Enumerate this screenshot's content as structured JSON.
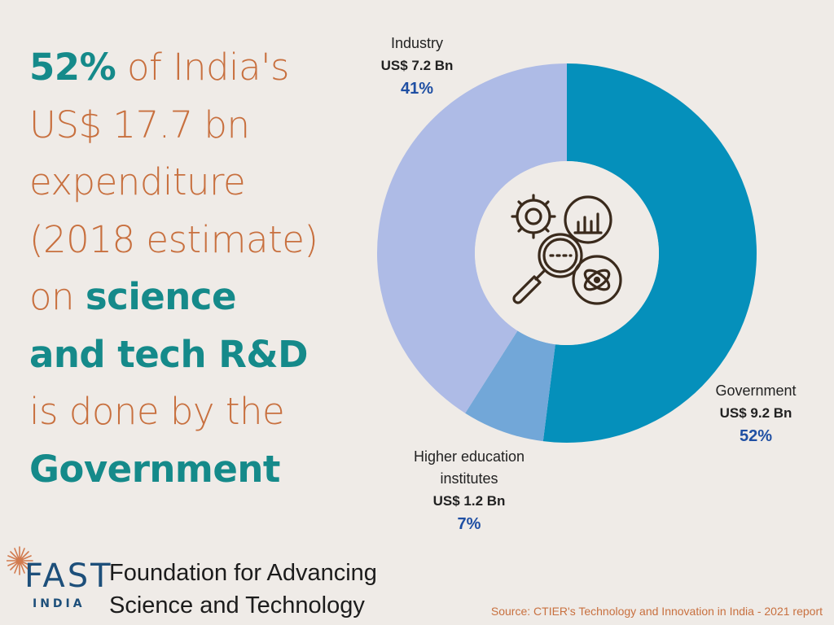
{
  "headline": {
    "lines": [
      {
        "em": "52%",
        "rest": " of India's"
      },
      {
        "rest": "US$ 17.7 bn"
      },
      {
        "rest": "expenditure"
      },
      {
        "rest": "(2018 estimate)"
      },
      {
        "pre": "on ",
        "em": "science"
      },
      {
        "em": "and tech R&D"
      },
      {
        "rest": "is done by the"
      },
      {
        "em": "Government"
      }
    ]
  },
  "colors": {
    "government": "#0590bb",
    "industry": "#aebbe6",
    "higher_education": "#72a7d8",
    "accent_orange": "#c8703f",
    "accent_teal": "#158a8a",
    "icon": "#3a2a1c",
    "hole": "#efebe7"
  },
  "chart_data": {
    "type": "pie",
    "title": "India's US$ 17.7 bn expenditure on science and tech R&D (2018 estimate)",
    "donut": true,
    "categories": [
      "Government",
      "Higher education institutes",
      "Industry"
    ],
    "values": [
      52,
      7,
      41
    ],
    "amounts": [
      "US$ 9.2 Bn",
      "US$ 1.2 Bn",
      "US$ 7.2 Bn"
    ],
    "labels": {
      "government": {
        "name": "Government",
        "amount": "US$ 9.2 Bn",
        "percent": "52%"
      },
      "industry": {
        "name": "Industry",
        "amount": "US$ 7.2 Bn",
        "percent": "41%"
      },
      "higher_education": {
        "name_line1": "Higher education",
        "name_line2": "institutes",
        "amount": "US$ 1.2 Bn",
        "percent": "7%"
      }
    },
    "center_icon": "research-analysis-icon"
  },
  "footer": {
    "logo_word": "FAST",
    "logo_sub": "INDIA",
    "org_line1": "Foundation for Advancing",
    "org_line2": "Science and Technology",
    "source": "Source: CTIER's Technology and Innovation in India - 2021 report"
  }
}
